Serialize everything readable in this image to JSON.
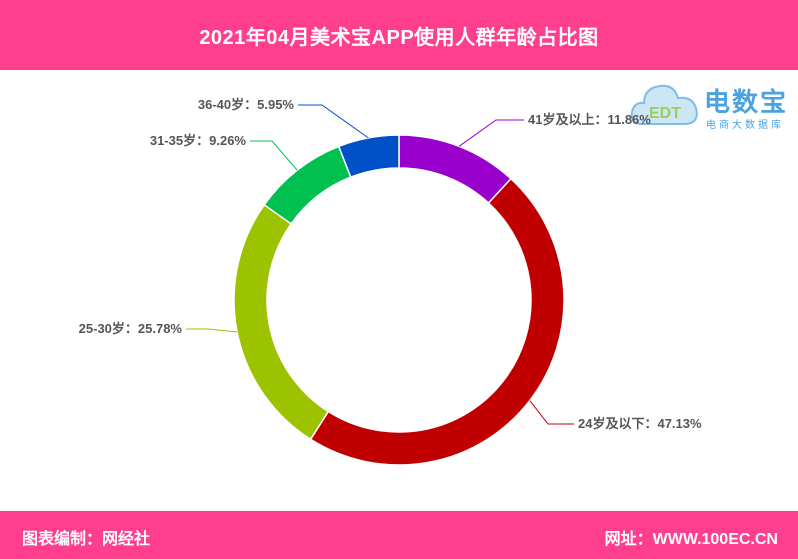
{
  "header": {
    "title": "2021年04月美术宝APP使用人群年龄占比图"
  },
  "footer": {
    "left": "图表编制：网经社",
    "right": "网址：WWW.100EC.CN"
  },
  "logo": {
    "brand": "电数宝",
    "sub": "电商大数据库",
    "mark": "EDT"
  },
  "colors": {
    "header_bg": "#ff3f8e"
  },
  "chart_data": {
    "type": "pie",
    "style": "donut",
    "slices": [
      {
        "label": "41岁及以上",
        "value": 11.86,
        "color": "#9900cc",
        "text": "41岁及以上：11.86%"
      },
      {
        "label": "24岁及以下",
        "value": 47.13,
        "color": "#c00000",
        "text": "24岁及以下：47.13%"
      },
      {
        "label": "25-30岁",
        "value": 25.78,
        "color": "#9dc300",
        "text": "25-30岁：25.78%"
      },
      {
        "label": "31-35岁",
        "value": 9.26,
        "color": "#00c050",
        "text": "31-35岁：9.26%"
      },
      {
        "label": "36-40岁",
        "value": 5.95,
        "color": "#0050c8",
        "text": "36-40岁：5.95%"
      }
    ]
  }
}
